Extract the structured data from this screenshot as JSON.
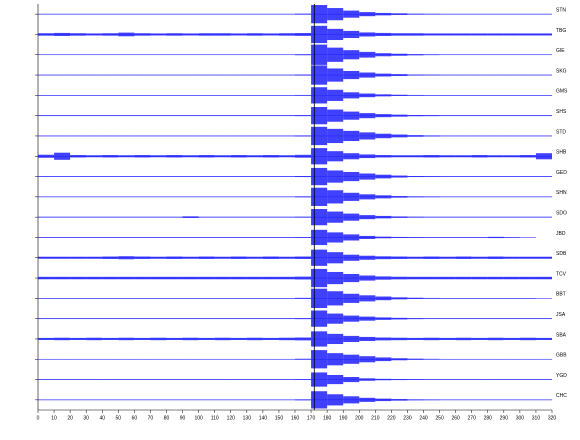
{
  "chart_data": {
    "type": "seismogram",
    "color": "#1f1fff",
    "xlim": [
      0,
      320
    ],
    "xticks": [
      0,
      10,
      20,
      30,
      40,
      50,
      60,
      70,
      80,
      90,
      100,
      110,
      120,
      130,
      140,
      150,
      160,
      170,
      180,
      190,
      200,
      210,
      220,
      230,
      240,
      250,
      260,
      270,
      280,
      290,
      300,
      310,
      320
    ],
    "pick_time": 172,
    "x": [
      0,
      10,
      20,
      30,
      40,
      50,
      60,
      70,
      80,
      90,
      100,
      110,
      120,
      130,
      140,
      150,
      160,
      170,
      180,
      190,
      200,
      210,
      220,
      230,
      240,
      250,
      260,
      270,
      280,
      290,
      300,
      310,
      320
    ],
    "series": [
      {
        "name": "STN",
        "values": [
          0.03,
          0.03,
          0.03,
          0.03,
          0.03,
          0.03,
          0.03,
          0.03,
          0.03,
          0.03,
          0.03,
          0.03,
          0.03,
          0.03,
          0.03,
          0.03,
          0.05,
          0.9,
          0.6,
          0.35,
          0.2,
          0.12,
          0.08,
          0.05,
          0.04,
          0.03,
          0.03,
          0.03,
          0.03,
          0.03,
          0.03,
          0.03,
          0.03
        ]
      },
      {
        "name": "TBG",
        "values": [
          0.12,
          0.15,
          0.12,
          0.1,
          0.12,
          0.18,
          0.12,
          0.1,
          0.12,
          0.1,
          0.12,
          0.12,
          0.1,
          0.12,
          0.1,
          0.12,
          0.14,
          0.85,
          0.55,
          0.35,
          0.2,
          0.15,
          0.12,
          0.12,
          0.1,
          0.1,
          0.1,
          0.1,
          0.1,
          0.1,
          0.1,
          0.1,
          0.1
        ]
      },
      {
        "name": "GIE",
        "values": [
          0.03,
          0.03,
          0.03,
          0.03,
          0.03,
          0.03,
          0.03,
          0.03,
          0.03,
          0.03,
          0.03,
          0.03,
          0.03,
          0.03,
          0.03,
          0.03,
          0.05,
          1.0,
          0.7,
          0.45,
          0.28,
          0.15,
          0.1,
          0.06,
          0.04,
          0.03,
          0.03,
          0.03,
          0.03,
          0.03,
          0.03,
          0.03,
          0.03
        ]
      },
      {
        "name": "SKG",
        "values": [
          0.03,
          0.03,
          0.03,
          0.03,
          0.03,
          0.03,
          0.03,
          0.03,
          0.03,
          0.03,
          0.03,
          0.03,
          0.03,
          0.03,
          0.03,
          0.03,
          0.05,
          0.95,
          0.65,
          0.4,
          0.25,
          0.14,
          0.09,
          0.05,
          0.04,
          0.03,
          0.03,
          0.03,
          0.03,
          0.03,
          0.03,
          0.03,
          0.03
        ]
      },
      {
        "name": "GMS",
        "values": [
          0.03,
          0.03,
          0.03,
          0.03,
          0.03,
          0.03,
          0.03,
          0.03,
          0.03,
          0.03,
          0.03,
          0.03,
          0.03,
          0.03,
          0.03,
          0.03,
          0.04,
          0.8,
          0.55,
          0.3,
          0.18,
          0.1,
          0.06,
          0.04,
          0.03,
          0.03,
          0.03,
          0.03,
          0.03,
          0.03,
          0.03,
          0.03,
          0.03
        ]
      },
      {
        "name": "SHS",
        "values": [
          0.04,
          0.04,
          0.04,
          0.04,
          0.04,
          0.04,
          0.04,
          0.04,
          0.04,
          0.04,
          0.04,
          0.04,
          0.04,
          0.04,
          0.04,
          0.04,
          0.05,
          0.85,
          0.6,
          0.4,
          0.25,
          0.15,
          0.1,
          0.06,
          0.05,
          0.04,
          0.04,
          0.04,
          0.04,
          0.04,
          0.04,
          0.04,
          0.04
        ]
      },
      {
        "name": "STD",
        "values": [
          0.03,
          0.03,
          0.03,
          0.03,
          0.03,
          0.03,
          0.03,
          0.03,
          0.03,
          0.03,
          0.03,
          0.03,
          0.03,
          0.03,
          0.03,
          0.03,
          0.05,
          0.9,
          0.7,
          0.5,
          0.35,
          0.22,
          0.14,
          0.08,
          0.05,
          0.03,
          0.03,
          0.03,
          0.03,
          0.03,
          0.03,
          0.03,
          0.03
        ]
      },
      {
        "name": "SHB",
        "values": [
          0.15,
          0.35,
          0.12,
          0.1,
          0.12,
          0.1,
          0.12,
          0.1,
          0.12,
          0.1,
          0.12,
          0.1,
          0.12,
          0.1,
          0.12,
          0.1,
          0.14,
          0.8,
          0.5,
          0.3,
          0.18,
          0.12,
          0.1,
          0.1,
          0.12,
          0.1,
          0.1,
          0.12,
          0.1,
          0.1,
          0.12,
          0.3,
          0.12
        ]
      },
      {
        "name": "GED",
        "values": [
          0.03,
          0.03,
          0.03,
          0.03,
          0.03,
          0.03,
          0.03,
          0.03,
          0.03,
          0.03,
          0.03,
          0.03,
          0.03,
          0.03,
          0.03,
          0.03,
          0.05,
          0.85,
          0.6,
          0.45,
          0.3,
          0.18,
          0.1,
          0.05,
          0.04,
          0.03,
          0.03,
          0.03,
          0.03,
          0.03,
          0.03,
          0.03,
          0.03
        ]
      },
      {
        "name": "SHN",
        "values": [
          0.03,
          0.03,
          0.03,
          0.03,
          0.03,
          0.03,
          0.03,
          0.03,
          0.03,
          0.03,
          0.03,
          0.03,
          0.03,
          0.03,
          0.03,
          0.03,
          0.05,
          0.9,
          0.65,
          0.4,
          0.25,
          0.15,
          0.08,
          0.05,
          0.04,
          0.03,
          0.03,
          0.03,
          0.03,
          0.03,
          0.03,
          0.03,
          0.03
        ]
      },
      {
        "name": "SDO",
        "values": [
          0.04,
          0.04,
          0.04,
          0.04,
          0.04,
          0.04,
          0.04,
          0.04,
          0.04,
          0.08,
          0.04,
          0.04,
          0.04,
          0.04,
          0.04,
          0.04,
          0.05,
          0.8,
          0.55,
          0.35,
          0.2,
          0.12,
          0.07,
          0.05,
          0.04,
          0.04,
          0.04,
          0.04,
          0.04,
          0.04,
          0.04,
          0.04,
          0.04
        ]
      },
      {
        "name": "JBD",
        "values": [
          0.03,
          0.03,
          0.03,
          0.03,
          0.03,
          0.03,
          0.03,
          0.03,
          0.03,
          0.03,
          0.03,
          0.03,
          0.03,
          0.03,
          0.03,
          0.03,
          0.04,
          0.75,
          0.5,
          0.3,
          0.15,
          0.08,
          0.05,
          0.04,
          0.03,
          0.03,
          0.03,
          0.03,
          0.06,
          0.03,
          0.03,
          null,
          null
        ]
      },
      {
        "name": "SDB",
        "values": [
          0.1,
          0.1,
          0.1,
          0.1,
          0.12,
          0.15,
          0.12,
          0.1,
          0.12,
          0.1,
          0.12,
          0.1,
          0.12,
          0.1,
          0.12,
          0.1,
          0.12,
          0.8,
          0.55,
          0.3,
          0.2,
          0.14,
          0.12,
          0.1,
          0.12,
          0.1,
          0.12,
          0.1,
          0.12,
          0.1,
          0.1,
          0.1,
          0.1
        ]
      },
      {
        "name": "TCV",
        "values": [
          0.12,
          0.12,
          0.12,
          0.12,
          0.12,
          0.12,
          0.12,
          0.12,
          0.12,
          0.12,
          0.12,
          0.12,
          0.12,
          0.12,
          0.12,
          0.12,
          0.14,
          0.9,
          0.6,
          0.4,
          0.25,
          0.16,
          0.13,
          0.12,
          0.12,
          0.12,
          0.12,
          0.12,
          0.12,
          0.12,
          0.12,
          0.12,
          0.12
        ]
      },
      {
        "name": "BBT",
        "values": [
          0.03,
          0.03,
          0.03,
          0.03,
          0.03,
          0.03,
          0.03,
          0.03,
          0.03,
          0.03,
          0.03,
          0.03,
          0.03,
          0.03,
          0.03,
          0.03,
          0.05,
          0.95,
          0.7,
          0.45,
          0.3,
          0.18,
          0.1,
          0.06,
          0.04,
          0.03,
          0.03,
          0.03,
          0.03,
          0.03,
          0.03,
          0.03,
          null
        ]
      },
      {
        "name": "JSA",
        "values": [
          0.04,
          0.04,
          0.04,
          0.04,
          0.04,
          0.04,
          0.04,
          0.04,
          0.04,
          0.04,
          0.04,
          0.04,
          0.04,
          0.04,
          0.04,
          0.04,
          0.05,
          0.8,
          0.5,
          0.3,
          0.2,
          0.12,
          0.08,
          0.05,
          0.04,
          0.04,
          0.04,
          0.04,
          0.04,
          0.04,
          0.04,
          0.04,
          0.04
        ]
      },
      {
        "name": "SBA",
        "values": [
          0.1,
          0.12,
          0.1,
          0.12,
          0.1,
          0.12,
          0.1,
          0.12,
          0.1,
          0.12,
          0.1,
          0.12,
          0.1,
          0.12,
          0.1,
          0.12,
          0.14,
          0.75,
          0.5,
          0.3,
          0.2,
          0.14,
          0.12,
          0.1,
          0.12,
          0.1,
          0.12,
          0.1,
          0.12,
          0.1,
          0.12,
          0.1,
          0.1
        ]
      },
      {
        "name": "GBB",
        "values": [
          0.03,
          0.03,
          0.03,
          0.03,
          0.03,
          0.03,
          0.03,
          0.03,
          0.03,
          0.03,
          0.03,
          0.03,
          0.03,
          0.03,
          0.03,
          0.03,
          0.05,
          0.9,
          0.6,
          0.45,
          0.3,
          0.18,
          0.1,
          0.06,
          0.04,
          0.03,
          0.03,
          0.03,
          0.03,
          0.03,
          0.03,
          0.03,
          0.03
        ]
      },
      {
        "name": "YGD",
        "values": [
          0.03,
          0.03,
          0.03,
          0.03,
          0.03,
          0.03,
          0.03,
          0.03,
          0.03,
          0.03,
          0.03,
          0.03,
          0.03,
          0.03,
          0.03,
          0.03,
          0.04,
          0.7,
          0.45,
          0.25,
          0.12,
          0.07,
          0.05,
          0.04,
          0.03,
          0.03,
          0.03,
          0.03,
          0.03,
          0.03,
          0.03,
          0.03,
          0.03
        ]
      },
      {
        "name": "CHC",
        "values": [
          0.03,
          0.03,
          0.03,
          0.03,
          0.03,
          0.03,
          0.03,
          0.03,
          0.03,
          0.03,
          0.03,
          0.03,
          0.03,
          0.03,
          0.03,
          0.03,
          0.05,
          0.85,
          0.55,
          0.35,
          0.2,
          0.12,
          0.08,
          0.05,
          0.04,
          0.03,
          0.03,
          0.03,
          0.03,
          0.03,
          0.03,
          0.03,
          0.03
        ]
      }
    ]
  }
}
